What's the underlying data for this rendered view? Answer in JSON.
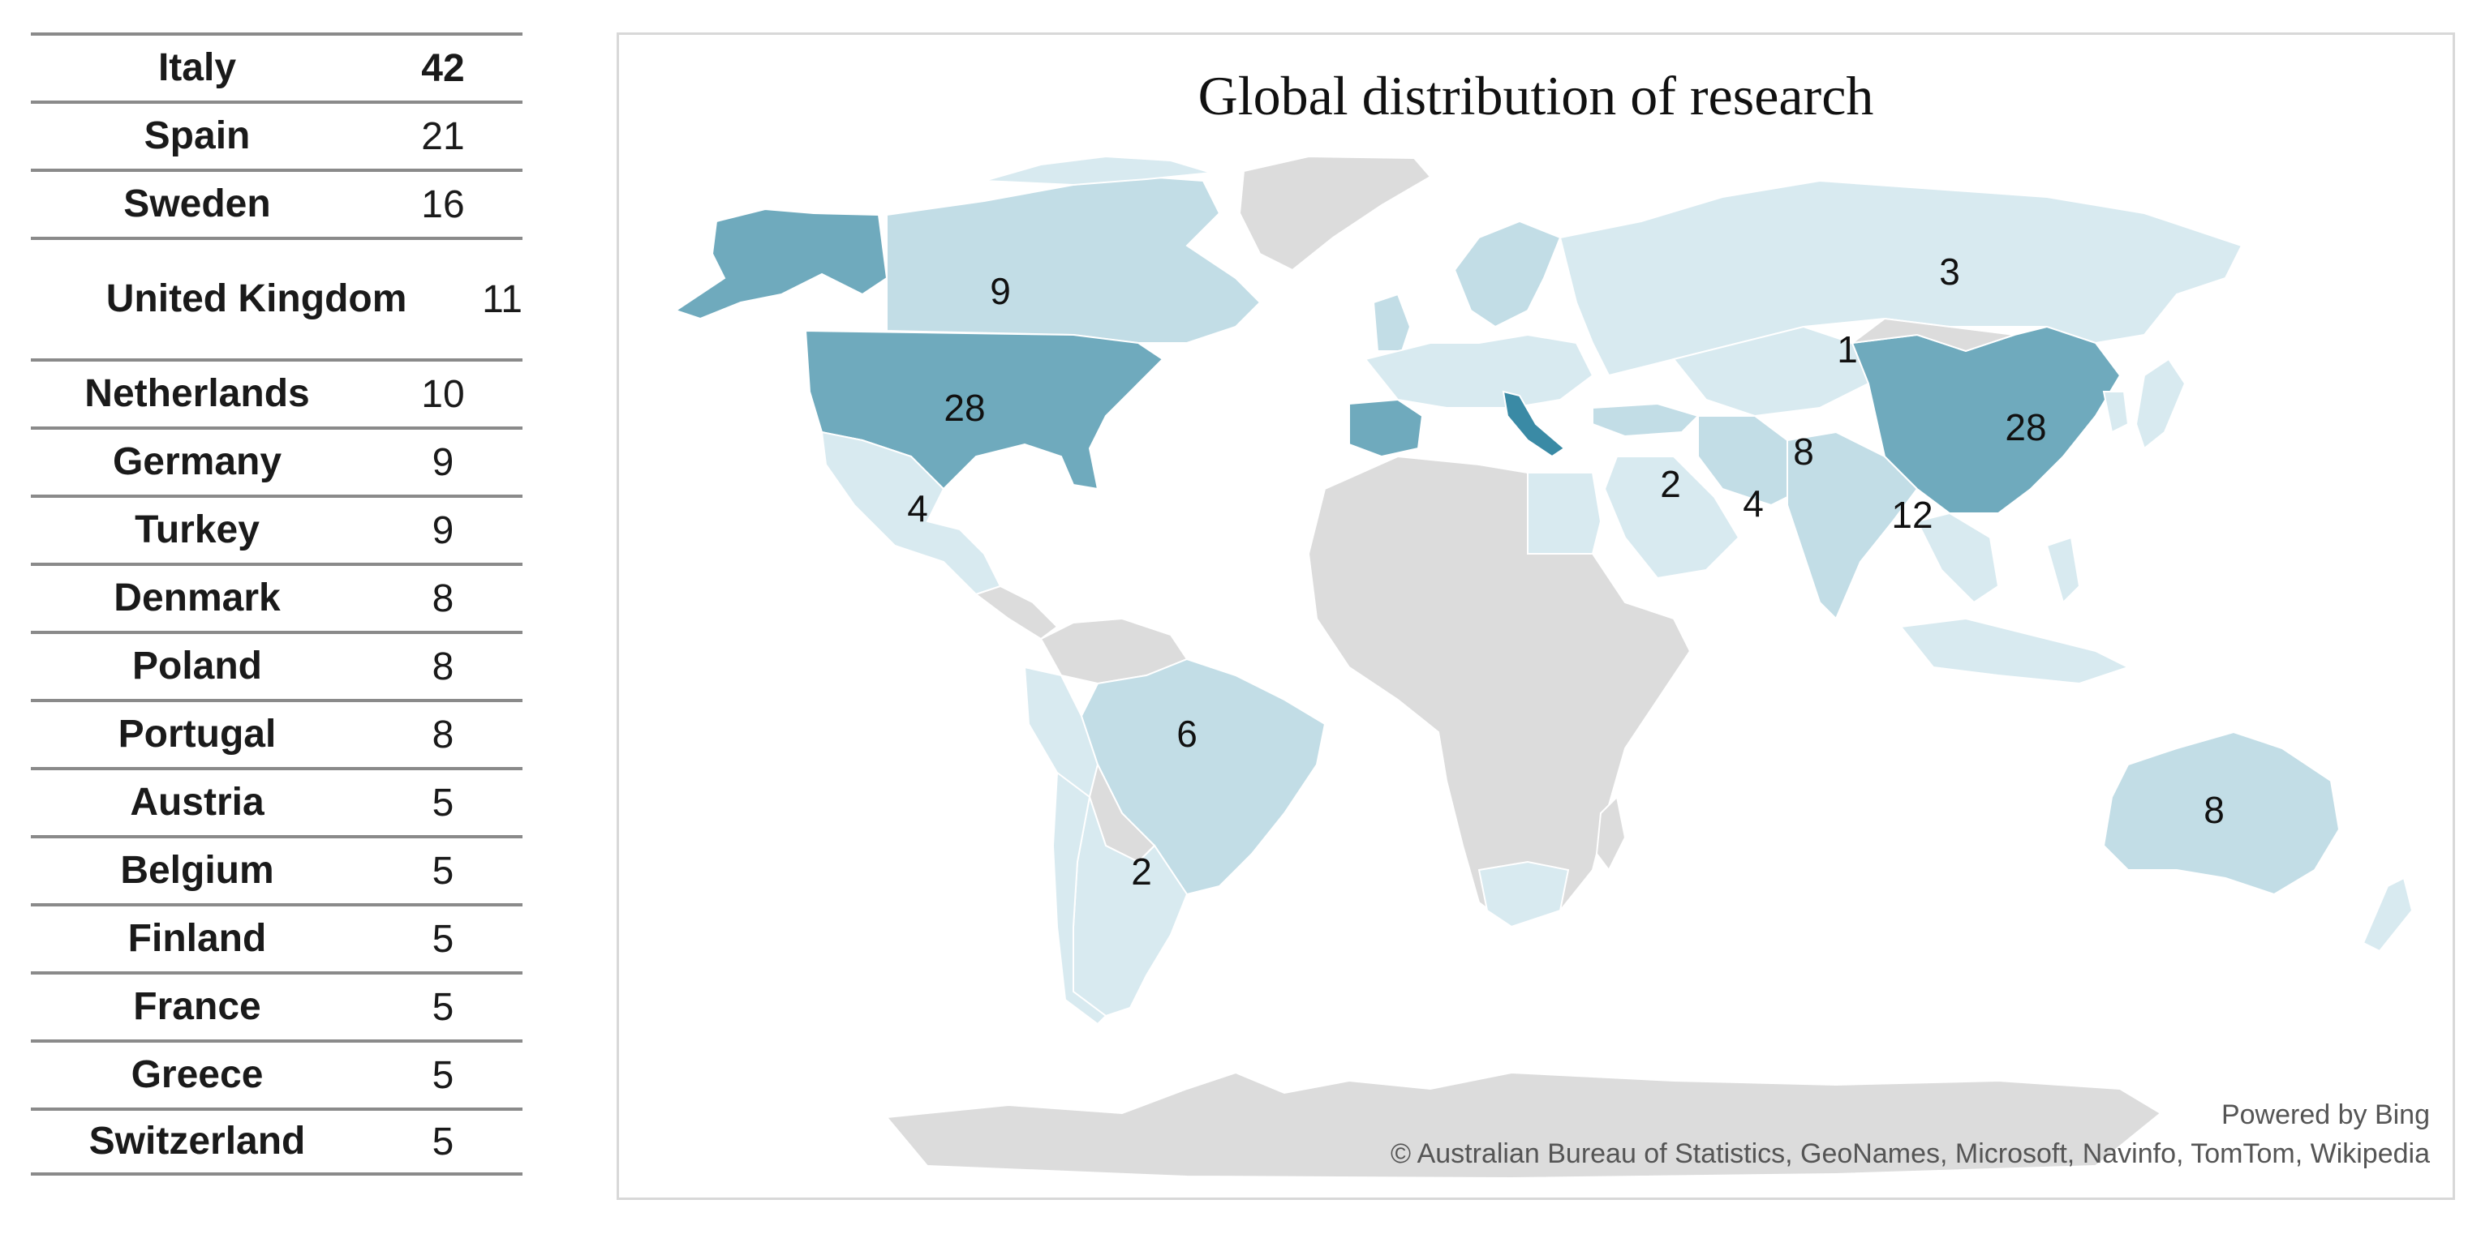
{
  "table": {
    "rows": [
      {
        "country": "Italy",
        "count": "42"
      },
      {
        "country": "Spain",
        "count": "21"
      },
      {
        "country": "Sweden",
        "count": "16"
      },
      {
        "country": "United Kingdom",
        "count": "11"
      },
      {
        "country": "Netherlands",
        "count": "10"
      },
      {
        "country": "Germany",
        "count": "9"
      },
      {
        "country": "Turkey",
        "count": "9"
      },
      {
        "country": "Denmark",
        "count": "8"
      },
      {
        "country": "Poland",
        "count": "8"
      },
      {
        "country": "Portugal",
        "count": "8"
      },
      {
        "country": "Austria",
        "count": "5"
      },
      {
        "country": "Belgium",
        "count": "5"
      },
      {
        "country": "Finland",
        "count": "5"
      },
      {
        "country": "France",
        "count": "5"
      },
      {
        "country": "Greece",
        "count": "5"
      },
      {
        "country": "Switzerland",
        "count": "5"
      }
    ]
  },
  "map": {
    "title": "Global distribution of research",
    "powered_by": "Powered by Bing",
    "attribution": "© Australian Bureau of Statistics, GeoNames, Microsoft, Navinfo, TomTom, Wikipedia",
    "colors": {
      "no_data": "#dcdcdc",
      "lightest": "#d8eaf0",
      "light": "#c2dde6",
      "medium": "#6faabd",
      "dark": "#3a8aa5"
    },
    "labels": [
      {
        "region": "canada",
        "value": "9"
      },
      {
        "region": "russia",
        "value": "3"
      },
      {
        "region": "kazakhstan",
        "value": "1"
      },
      {
        "region": "usa",
        "value": "28"
      },
      {
        "region": "china",
        "value": "28"
      },
      {
        "region": "iran",
        "value": "8"
      },
      {
        "region": "mexico",
        "value": "4"
      },
      {
        "region": "egypt",
        "value": "2"
      },
      {
        "region": "saudi-arabia",
        "value": "4"
      },
      {
        "region": "india",
        "value": "12"
      },
      {
        "region": "brazil",
        "value": "6"
      },
      {
        "region": "argentina",
        "value": "2"
      },
      {
        "region": "australia",
        "value": "8"
      }
    ]
  }
}
